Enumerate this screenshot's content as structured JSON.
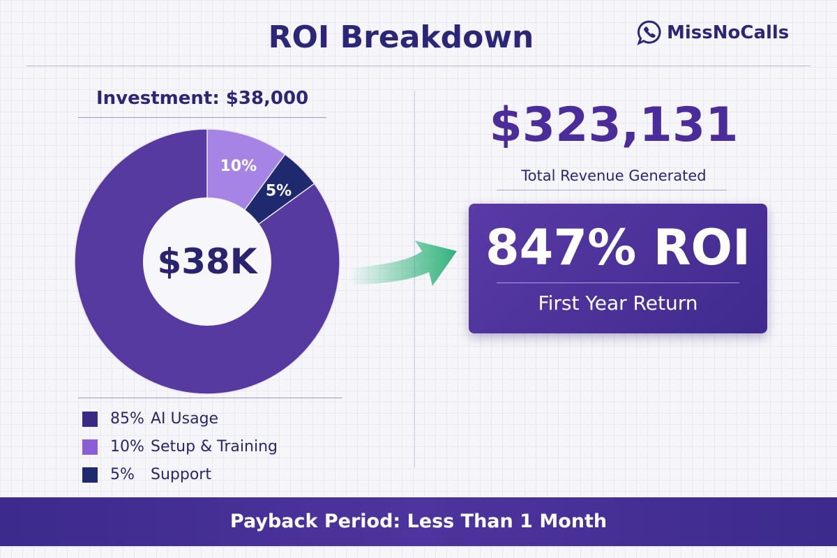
{
  "header": {
    "title": "ROI Breakdown",
    "logo_text": "MissNoCalls",
    "logo_icon": "phone-chat-icon"
  },
  "investment_label": "Investment: $38,000",
  "chart_data": {
    "type": "pie",
    "subtype": "donut",
    "center_label": "$38K",
    "categories": [
      "Setup & Training",
      "Support",
      "AI Usage"
    ],
    "values": [
      10,
      5,
      85
    ],
    "slice_labels": [
      "10%",
      "5%",
      ""
    ],
    "colors": [
      "#a584e6",
      "#1f2a6e",
      "#573a9f"
    ]
  },
  "legend": [
    {
      "pct": "85%",
      "label": "AI Usage",
      "color": "#3a2a86"
    },
    {
      "pct": "10%",
      "label": "Setup & Training",
      "color": "#8a5fd6"
    },
    {
      "pct": "5%",
      "label": "Support",
      "color": "#1f2a6e"
    }
  ],
  "revenue": {
    "value": "$323,131",
    "label": "Total Revenue Generated"
  },
  "roi": {
    "value": "847% ROI",
    "label": "First Year Return"
  },
  "arrow_color": "#2fb37a",
  "footer": "Payback Period: Less Than 1 Month"
}
